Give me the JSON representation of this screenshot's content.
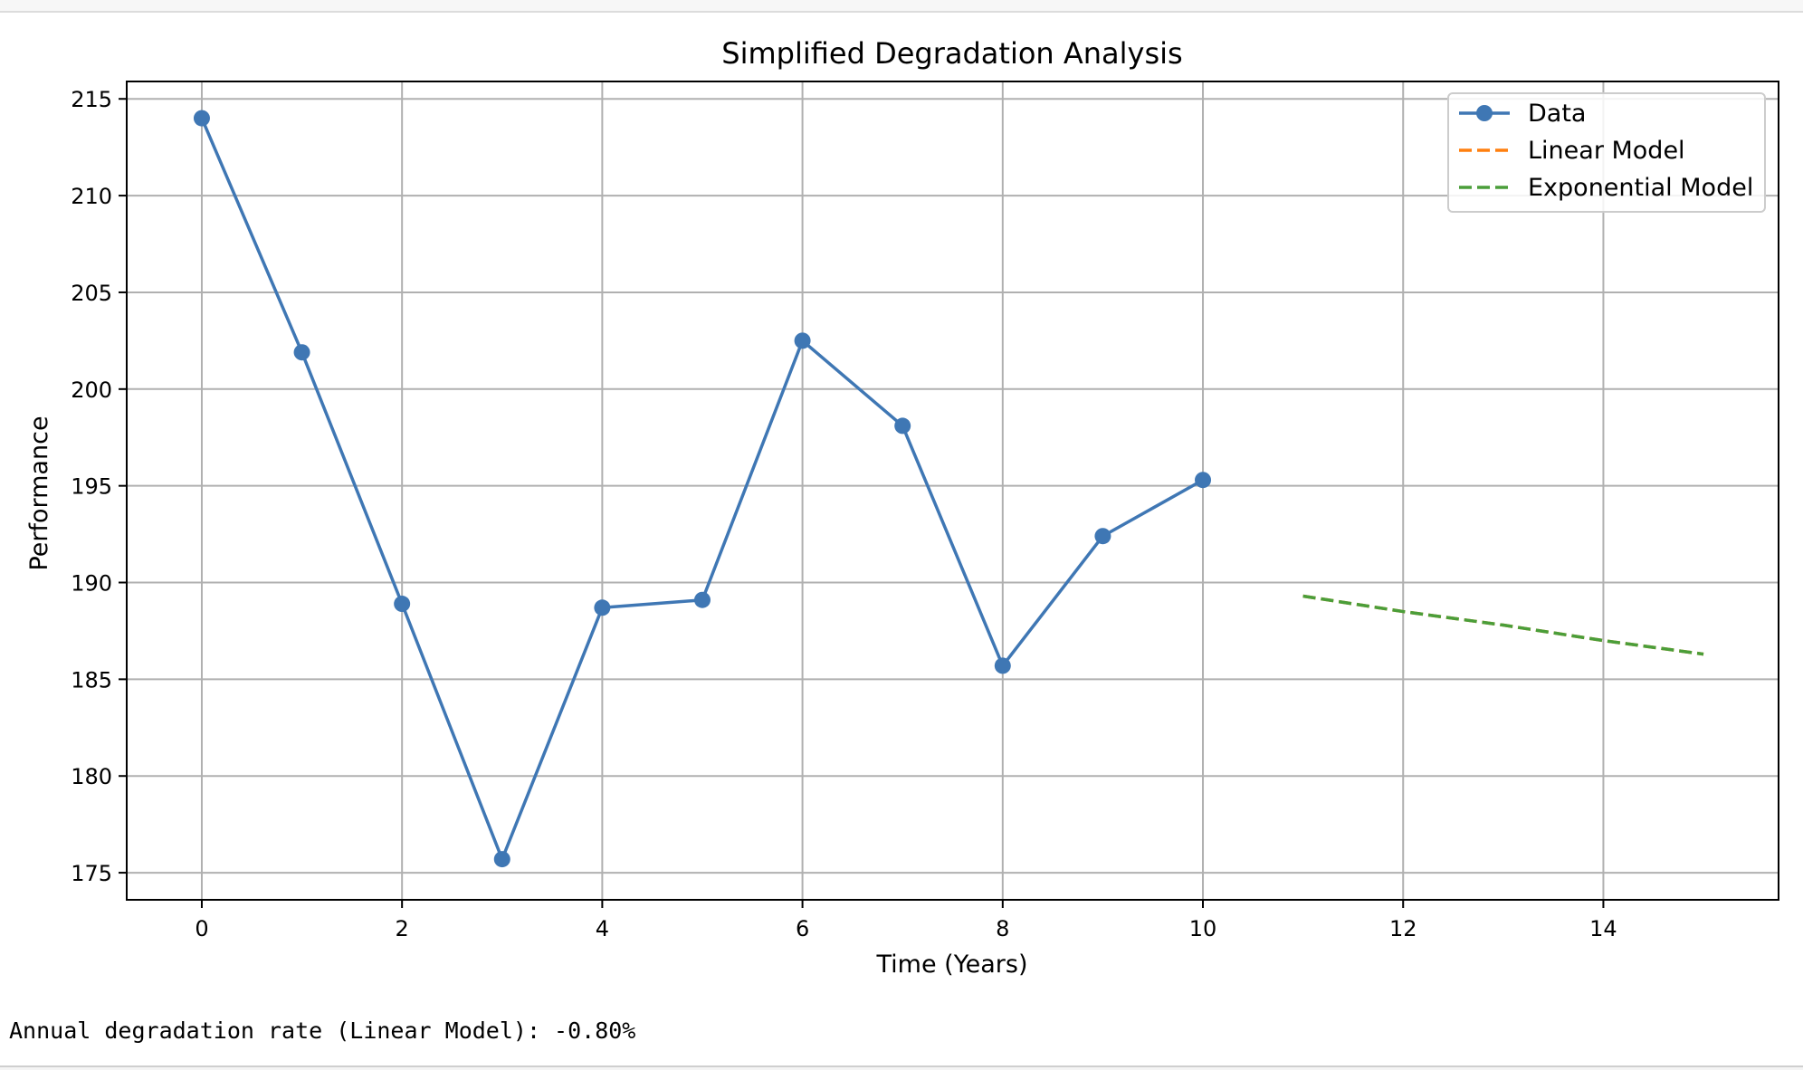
{
  "chart_data": {
    "type": "line",
    "title": "Simplified Degradation Analysis",
    "xlabel": "Time (Years)",
    "ylabel": "Performance",
    "xlim": [
      -0.75,
      15.75
    ],
    "ylim": [
      173.6,
      215.9
    ],
    "xticks": [
      0,
      2,
      4,
      6,
      8,
      10,
      12,
      14
    ],
    "yticks": [
      175,
      180,
      185,
      190,
      195,
      200,
      205,
      210,
      215
    ],
    "grid": true,
    "legend_position": "top-right",
    "series": [
      {
        "name": "Data",
        "style": "line-marker",
        "color": "#3f77b4",
        "x": [
          0,
          1,
          2,
          3,
          4,
          5,
          6,
          7,
          8,
          9,
          10
        ],
        "y": [
          214.0,
          201.9,
          188.9,
          175.7,
          188.7,
          189.1,
          202.5,
          198.1,
          185.7,
          192.4,
          195.3
        ]
      },
      {
        "name": "Linear Model",
        "style": "dashed",
        "color": "#ff7f0e",
        "x": [
          11,
          12,
          13,
          14,
          15
        ],
        "y": [
          189.3,
          188.5,
          187.8,
          187.0,
          186.3
        ]
      },
      {
        "name": "Exponential Model",
        "style": "dashed",
        "color": "#4a9e3a",
        "x": [
          11,
          12,
          13,
          14,
          15
        ],
        "y": [
          189.3,
          188.5,
          187.8,
          187.0,
          186.3
        ]
      }
    ]
  },
  "output": {
    "text": "Annual degradation rate (Linear Model): -0.80%"
  }
}
